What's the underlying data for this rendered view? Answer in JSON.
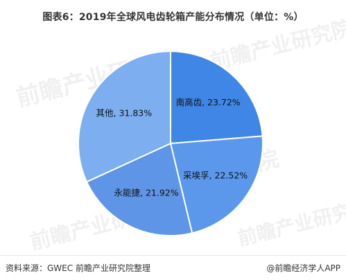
{
  "title": "图表6：2019年全球风电齿轮箱产能分布情况（单位：%）",
  "watermark_text": "前瞻产业研究院",
  "footer": {
    "source": "资料来源：GWEC 前瞻产业研究院整理",
    "brand": "@前瞻经济学人APP"
  },
  "colors": {
    "slice_1": "#3F86E6",
    "slice_2": "#5B98EB",
    "slice_3": "#5E95E6",
    "slice_4": "#7DAEF0",
    "edge": "#ffffff"
  },
  "chart_data": {
    "type": "pie",
    "title": "图表6：2019年全球风电齿轮箱产能分布情况（单位：%）",
    "start": "12 o'clock, clockwise",
    "slices": [
      {
        "label": "南高齿",
        "value": 23.72,
        "text": "南高齿, 23.72%"
      },
      {
        "label": "采埃孚",
        "value": 22.52,
        "text": "采埃孚, 22.52%"
      },
      {
        "label": "永能捷",
        "value": 21.92,
        "text": "永能捷, 21.92%"
      },
      {
        "label": "其他",
        "value": 31.83,
        "text": "其他, 31.83%"
      }
    ]
  }
}
